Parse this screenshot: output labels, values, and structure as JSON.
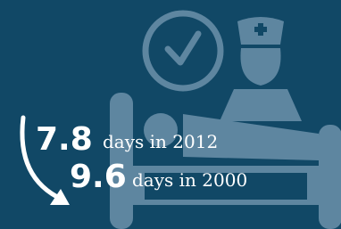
{
  "stats": [
    {
      "number": 7.8,
      "text": "days in 2012"
    },
    {
      "number": 9.6,
      "text": "days in 2000"
    }
  ]
}
